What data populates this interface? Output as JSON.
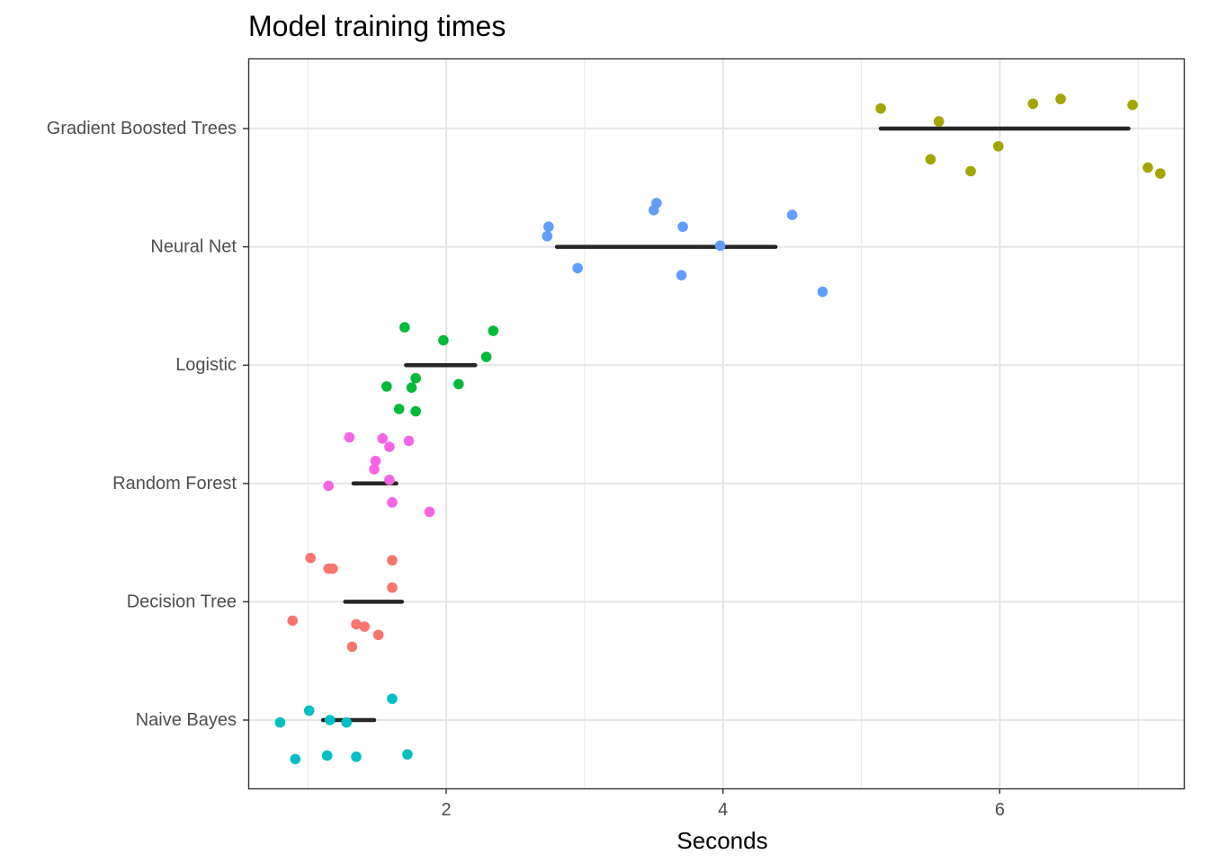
{
  "chart_data": {
    "type": "scatter",
    "title": "Model training times",
    "xlabel": "Seconds",
    "ylabel": "",
    "xlim": [
      0.57,
      7.33
    ],
    "x_ticks": [
      2,
      4,
      6
    ],
    "x_tick_labels": [
      "2",
      "4",
      "6"
    ],
    "categories": [
      "Gradient Boosted Trees",
      "Neural Net",
      "Logistic",
      "Random Forest",
      "Decision Tree",
      "Naive Bayes"
    ],
    "grid": true,
    "legend": "none",
    "series": [
      {
        "category": "Gradient Boosted Trees",
        "color": "#a3a500",
        "points": [
          [
            5.14,
            0.17
          ],
          [
            5.56,
            0.06
          ],
          [
            6.24,
            0.21
          ],
          [
            6.44,
            0.25
          ],
          [
            6.96,
            0.2
          ],
          [
            5.99,
            -0.15
          ],
          [
            5.5,
            -0.26
          ],
          [
            5.79,
            -0.36
          ],
          [
            7.07,
            -0.33
          ],
          [
            7.16,
            -0.38
          ]
        ],
        "bar": [
          5.14,
          6.93
        ]
      },
      {
        "category": "Neural Net",
        "color": "#619cff",
        "points": [
          [
            3.52,
            0.37
          ],
          [
            3.5,
            0.31
          ],
          [
            4.5,
            0.27
          ],
          [
            2.74,
            0.17
          ],
          [
            3.71,
            0.17
          ],
          [
            2.73,
            0.09
          ],
          [
            3.98,
            0.01
          ],
          [
            2.95,
            -0.18
          ],
          [
            3.7,
            -0.24
          ],
          [
            4.72,
            -0.38
          ]
        ],
        "bar": [
          2.8,
          4.38
        ]
      },
      {
        "category": "Logistic",
        "color": "#00ba38",
        "points": [
          [
            1.7,
            0.32
          ],
          [
            2.34,
            0.29
          ],
          [
            1.98,
            0.21
          ],
          [
            2.29,
            0.07
          ],
          [
            1.78,
            -0.11
          ],
          [
            2.09,
            -0.16
          ],
          [
            1.57,
            -0.18
          ],
          [
            1.75,
            -0.19
          ],
          [
            1.66,
            -0.37
          ],
          [
            1.78,
            -0.39
          ]
        ],
        "bar": [
          1.71,
          2.21
        ]
      },
      {
        "category": "Random Forest",
        "color": "#f564e3",
        "points": [
          [
            1.3,
            0.39
          ],
          [
            1.54,
            0.38
          ],
          [
            1.73,
            0.36
          ],
          [
            1.59,
            0.31
          ],
          [
            1.49,
            0.19
          ],
          [
            1.48,
            0.12
          ],
          [
            1.59,
            0.03
          ],
          [
            1.15,
            -0.02
          ],
          [
            1.61,
            -0.16
          ],
          [
            1.88,
            -0.24
          ]
        ],
        "bar": [
          1.33,
          1.64
        ]
      },
      {
        "category": "Decision Tree",
        "color": "#f8766d",
        "points": [
          [
            1.02,
            0.37
          ],
          [
            1.61,
            0.35
          ],
          [
            1.15,
            0.28
          ],
          [
            1.18,
            0.28
          ],
          [
            1.61,
            0.12
          ],
          [
            0.89,
            -0.16
          ],
          [
            1.35,
            -0.19
          ],
          [
            1.41,
            -0.21
          ],
          [
            1.51,
            -0.28
          ],
          [
            1.32,
            -0.38
          ]
        ],
        "bar": [
          1.27,
          1.68
        ]
      },
      {
        "category": "Naive Bayes",
        "color": "#00bfc4",
        "points": [
          [
            1.61,
            0.18
          ],
          [
            1.01,
            0.08
          ],
          [
            1.16,
            0.0
          ],
          [
            1.28,
            -0.02
          ],
          [
            0.8,
            -0.02
          ],
          [
            1.72,
            -0.29
          ],
          [
            1.14,
            -0.3
          ],
          [
            1.35,
            -0.31
          ],
          [
            0.91,
            -0.33
          ]
        ],
        "bar": [
          1.11,
          1.48
        ]
      }
    ]
  }
}
